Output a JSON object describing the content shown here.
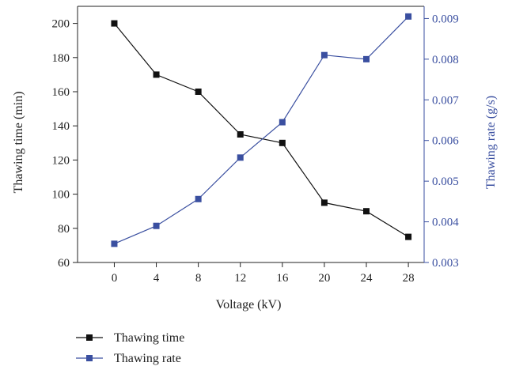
{
  "chart_data": {
    "type": "line",
    "x": [
      0,
      4,
      8,
      12,
      16,
      20,
      24,
      28
    ],
    "xlabel": "Voltage (kV)",
    "xlim": [
      -3.5,
      29.5
    ],
    "xticks": [
      0,
      4,
      8,
      12,
      16,
      20,
      24,
      28
    ],
    "y_left": {
      "label": "Thawing time (min)",
      "lim": [
        60,
        210
      ],
      "ticks": [
        60,
        80,
        100,
        120,
        140,
        160,
        180,
        200
      ],
      "color": "#222222"
    },
    "y_right": {
      "label": "Thawing rate (g/s)",
      "lim": [
        0.003,
        0.0093
      ],
      "ticks": [
        0.003,
        0.004,
        0.005,
        0.006,
        0.007,
        0.008,
        0.009
      ],
      "tick_labels": [
        "0.003",
        "0.004",
        "0.005",
        "0.006",
        "0.007",
        "0.008",
        "0.009"
      ],
      "color": "#3a4fa0"
    },
    "series": [
      {
        "name": "Thawing time",
        "axis": "left",
        "color": "#111111",
        "marker": "square",
        "values": [
          200,
          170,
          160,
          135,
          130,
          95,
          90,
          75
        ]
      },
      {
        "name": "Thawing rate",
        "axis": "right",
        "color": "#3a4fa0",
        "marker": "square",
        "values": [
          0.00346,
          0.0039,
          0.00456,
          0.00558,
          0.00645,
          0.0081,
          0.008,
          0.00905
        ]
      }
    ],
    "legend": "bottom-left",
    "grid": false
  }
}
